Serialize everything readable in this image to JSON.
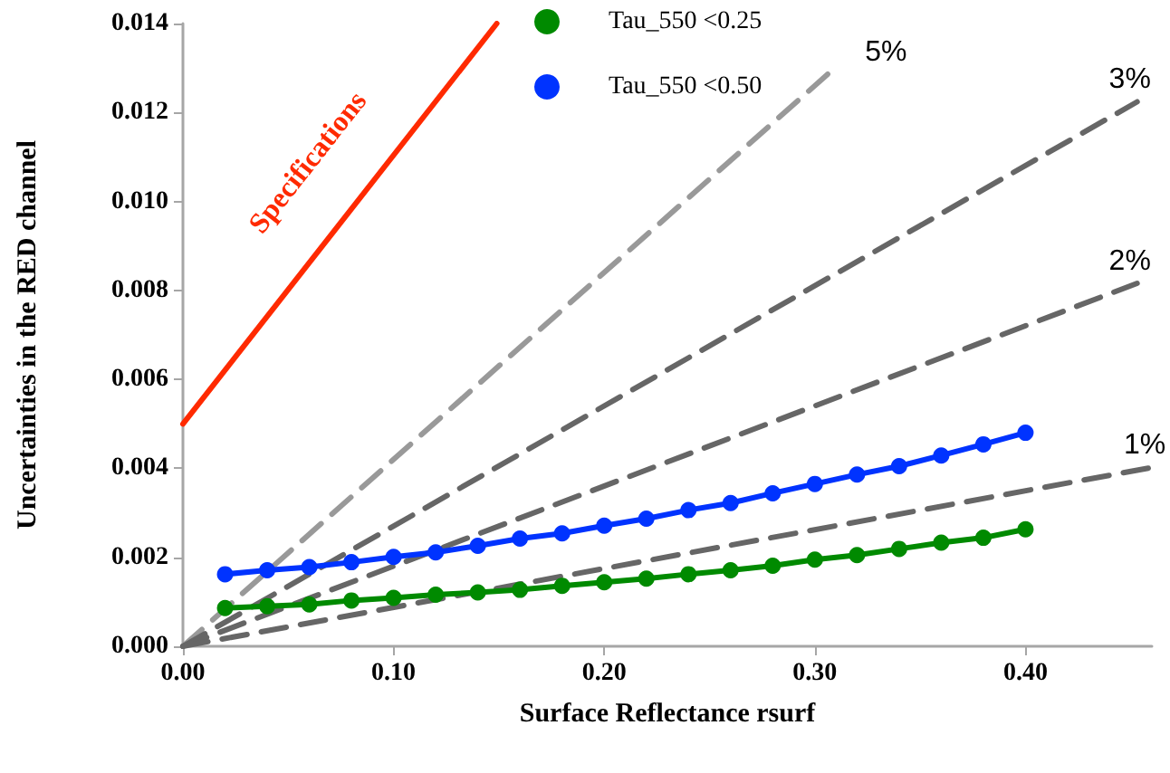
{
  "chart_data": {
    "type": "line",
    "xlabel": "Surface Reflectance rsurf",
    "ylabel": "Uncertainties in the RED channel",
    "xlim": [
      0,
      0.46
    ],
    "xticks": [
      {
        "value": 0,
        "label": "0.00"
      },
      {
        "value": 0.1,
        "label": "0.10"
      },
      {
        "value": 0.2,
        "label": "0.20"
      },
      {
        "value": 0.3,
        "label": "0.30"
      },
      {
        "value": 0.4,
        "label": "0.40"
      }
    ],
    "ylim": [
      0,
      0.014
    ],
    "yticks": [
      {
        "value": 0,
        "label": "0.000"
      },
      {
        "value": 0.002,
        "label": "0.002"
      },
      {
        "value": 0.004,
        "label": "0.004"
      },
      {
        "value": 0.006,
        "label": "0.006"
      },
      {
        "value": 0.008,
        "label": "0.008"
      },
      {
        "value": 0.01,
        "label": "0.010"
      },
      {
        "value": 0.012,
        "label": "0.012"
      },
      {
        "value": 0.014,
        "label": "0.014"
      }
    ],
    "grid": false,
    "legend": "top",
    "series": [
      {
        "name": "Specifications",
        "color": "#ff2a00",
        "x": [
          0,
          0.149
        ],
        "values": [
          0.005,
          0.014
        ],
        "marker": "none",
        "line_style": "solid"
      },
      {
        "name": "5%",
        "color": "#999999",
        "x": [
          0,
          0.308
        ],
        "values": [
          0,
          0.01294
        ],
        "marker": "none",
        "line_style": "dashed"
      },
      {
        "name": "3%",
        "color": "#666666",
        "x": [
          0,
          0.453
        ],
        "values": [
          0,
          0.01224
        ],
        "marker": "none",
        "line_style": "dashed"
      },
      {
        "name": "2%",
        "color": "#666666",
        "x": [
          0,
          0.453
        ],
        "values": [
          0,
          0.00816
        ],
        "marker": "none",
        "line_style": "dashed"
      },
      {
        "name": "1%",
        "color": "#666666",
        "x": [
          0,
          0.46
        ],
        "values": [
          0,
          0.00402
        ],
        "marker": "none",
        "line_style": "dashed"
      },
      {
        "name": "Tau_550 <0.25",
        "color": "#008a00",
        "x": [
          0.02,
          0.04,
          0.06,
          0.08,
          0.1,
          0.12,
          0.14,
          0.16,
          0.18,
          0.2,
          0.22,
          0.24,
          0.26,
          0.28,
          0.3,
          0.32,
          0.34,
          0.36,
          0.38,
          0.4
        ],
        "values": [
          0.00086,
          0.0009,
          0.00094,
          0.00103,
          0.00109,
          0.00116,
          0.00121,
          0.00127,
          0.00136,
          0.00144,
          0.00152,
          0.00162,
          0.00171,
          0.00181,
          0.00195,
          0.00205,
          0.00219,
          0.00233,
          0.00244,
          0.00263
        ],
        "marker": "circle",
        "line_style": "solid"
      },
      {
        "name": "Tau_550 <0.50",
        "color": "#0033ff",
        "x": [
          0.02,
          0.04,
          0.06,
          0.08,
          0.1,
          0.12,
          0.14,
          0.16,
          0.18,
          0.2,
          0.22,
          0.24,
          0.26,
          0.28,
          0.3,
          0.32,
          0.34,
          0.36,
          0.38,
          0.4
        ],
        "values": [
          0.00162,
          0.00171,
          0.00178,
          0.00189,
          0.00201,
          0.00211,
          0.00226,
          0.00242,
          0.00254,
          0.00271,
          0.00287,
          0.00306,
          0.00322,
          0.00344,
          0.00365,
          0.00386,
          0.00405,
          0.00429,
          0.00454,
          0.0048
        ],
        "marker": "circle",
        "line_style": "solid"
      }
    ]
  }
}
